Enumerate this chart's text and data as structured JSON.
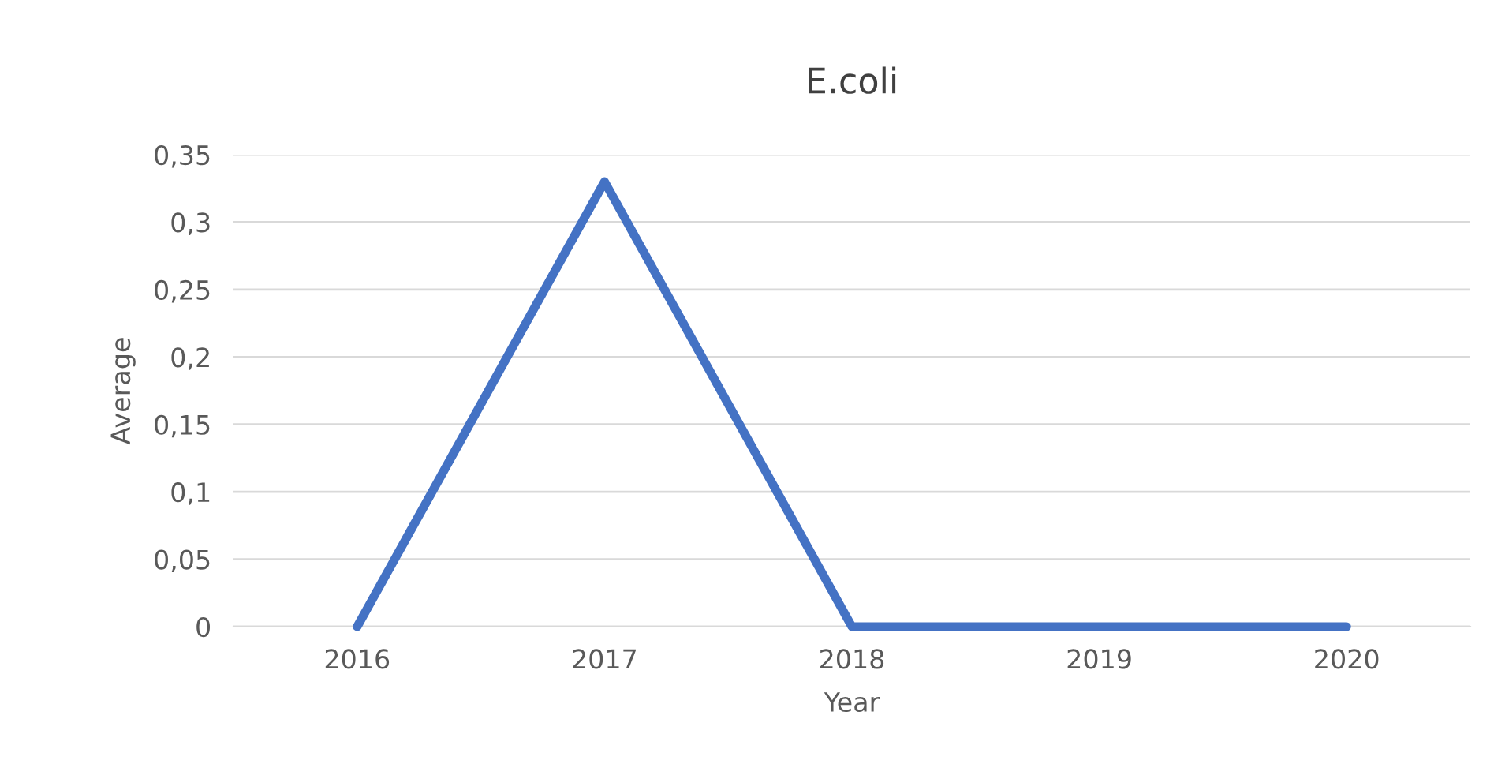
{
  "chart_data": {
    "type": "line",
    "title": "E.coli",
    "xlabel": "Year",
    "ylabel": "Average",
    "categories": [
      "2016",
      "2017",
      "2018",
      "2019",
      "2020"
    ],
    "series": [
      {
        "color": "#4472c4",
        "values": [
          0,
          0.33,
          0,
          0,
          0
        ]
      }
    ],
    "ylim": [
      0,
      0.35
    ],
    "yticks": [
      0,
      {
        "value": 0.05,
        "label": "0,05"
      },
      {
        "value": 0.1,
        "label": "0,1"
      },
      {
        "value": 0.15,
        "label": "0,15"
      },
      {
        "value": 0.2,
        "label": "0,2"
      },
      {
        "value": 0.25,
        "label": "0,25"
      },
      {
        "value": 0.3,
        "label": "0,3"
      },
      {
        "value": 0.35,
        "label": "0,35"
      }
    ],
    "grid": "y",
    "marker": "none",
    "line_style": "solid",
    "legend": false
  }
}
